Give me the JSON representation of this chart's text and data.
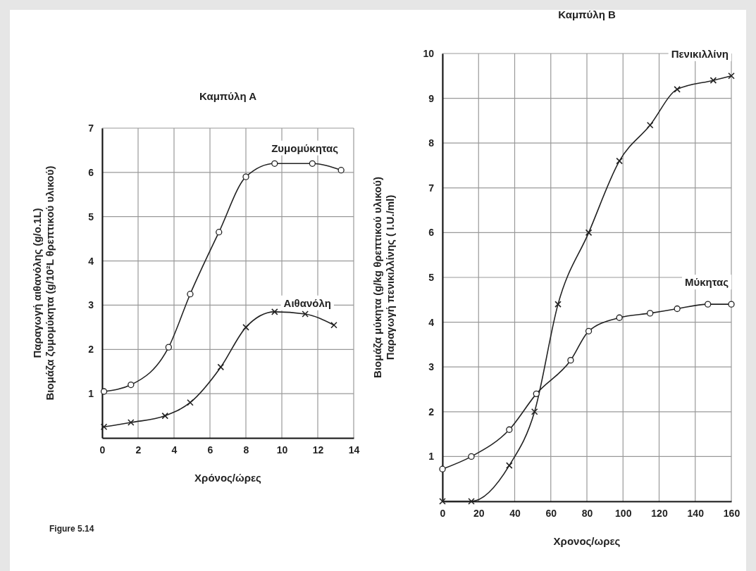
{
  "chart_data": [
    {
      "type": "line",
      "title": "Καμπύλη Α",
      "xlabel": "Χρόνος/ώρες",
      "ylabel": "Παραγωγή αιθανόλης (g/ο.1L)\nΒιομάζα ζυμομύκητα (g/10²L θρεπτικού υλικού)",
      "xlim": [
        0,
        14
      ],
      "xticks": [
        0,
        2,
        4,
        6,
        8,
        10,
        12,
        14
      ],
      "ylim": [
        0,
        7
      ],
      "yticks": [
        1,
        2,
        3,
        4,
        5,
        6,
        7
      ],
      "grid": true,
      "legend": false,
      "series": [
        {
          "name": "Ζυμομύκητας",
          "color": "#222222",
          "marker": "circle",
          "x": [
            0.1,
            1.6,
            3.7,
            4.9,
            6.5,
            8.0,
            9.6,
            11.7,
            13.3
          ],
          "values": [
            1.05,
            1.2,
            2.05,
            3.25,
            4.65,
            5.9,
            6.2,
            6.2,
            6.05
          ]
        },
        {
          "name": "Αιθανόλη",
          "color": "#222222",
          "marker": "cross",
          "x": [
            0.1,
            1.6,
            3.5,
            4.9,
            6.6,
            8.0,
            9.6,
            11.3,
            12.9
          ],
          "values": [
            0.25,
            0.35,
            0.5,
            0.8,
            1.6,
            2.5,
            2.85,
            2.8,
            2.55
          ]
        }
      ],
      "annotations": [
        "Figure 5.14"
      ]
    },
    {
      "type": "line",
      "title": "Καμπύλη Β",
      "xlabel": "Χρονος/ωρες",
      "ylabel": "Βιομάζα μύκητα (g/kg θρεπτικού υλικού)\nΠαραγωγή πενικιλλίνης ( I.U./ml)",
      "xlim": [
        0,
        160
      ],
      "xticks": [
        0,
        20,
        40,
        60,
        80,
        100,
        120,
        140,
        160
      ],
      "ylim": [
        0,
        10
      ],
      "yticks": [
        1,
        2,
        3,
        4,
        5,
        6,
        7,
        8,
        9,
        10
      ],
      "grid": true,
      "legend": false,
      "series": [
        {
          "name": "Πενικιλλίνη",
          "color": "#222222",
          "marker": "cross",
          "x": [
            0,
            16,
            37,
            51,
            64,
            81,
            98,
            115,
            130,
            150,
            160
          ],
          "values": [
            0,
            0,
            0.8,
            2.0,
            4.4,
            6.0,
            7.6,
            8.4,
            9.2,
            9.4,
            9.5
          ]
        },
        {
          "name": "Μύκητας",
          "color": "#222222",
          "marker": "circle",
          "x": [
            0,
            16,
            37,
            52,
            71,
            81,
            98,
            115,
            130,
            147,
            160
          ],
          "values": [
            0.72,
            1.0,
            1.6,
            2.4,
            3.15,
            3.8,
            4.1,
            4.2,
            4.3,
            4.4,
            4.4
          ]
        }
      ]
    }
  ]
}
